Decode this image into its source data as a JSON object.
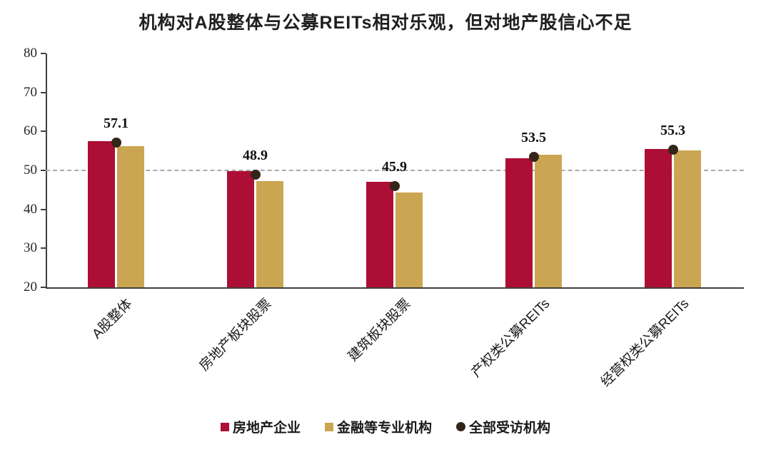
{
  "chart_data": {
    "type": "bar",
    "title": "机构对A股整体与公募REITs相对乐观，但对地产股信心不足",
    "categories": [
      "A股整体",
      "房地产板块股票",
      "建筑板块股票",
      "产权类公募REITs",
      "经营权类公募REITs"
    ],
    "series": [
      {
        "name": "房地产企业",
        "type": "bar",
        "color": "#AC0E35",
        "values": [
          57.5,
          49.8,
          47.0,
          53.2,
          55.4
        ]
      },
      {
        "name": "金融等专业机构",
        "type": "bar",
        "color": "#CBA652",
        "values": [
          56.2,
          47.2,
          44.3,
          54.1,
          55.2
        ]
      },
      {
        "name": "全部受访机构",
        "type": "point",
        "color": "#332518",
        "values": [
          57.1,
          48.9,
          45.9,
          53.5,
          55.3
        ],
        "labels": [
          "57.1",
          "48.9",
          "45.9",
          "53.5",
          "55.3"
        ]
      }
    ],
    "xlabel": "",
    "ylabel": "",
    "ylim": [
      20,
      80
    ],
    "yticks": [
      20,
      30,
      40,
      50,
      60,
      70,
      80
    ],
    "reference_line": 50,
    "grid": false,
    "legend_position": "bottom"
  }
}
